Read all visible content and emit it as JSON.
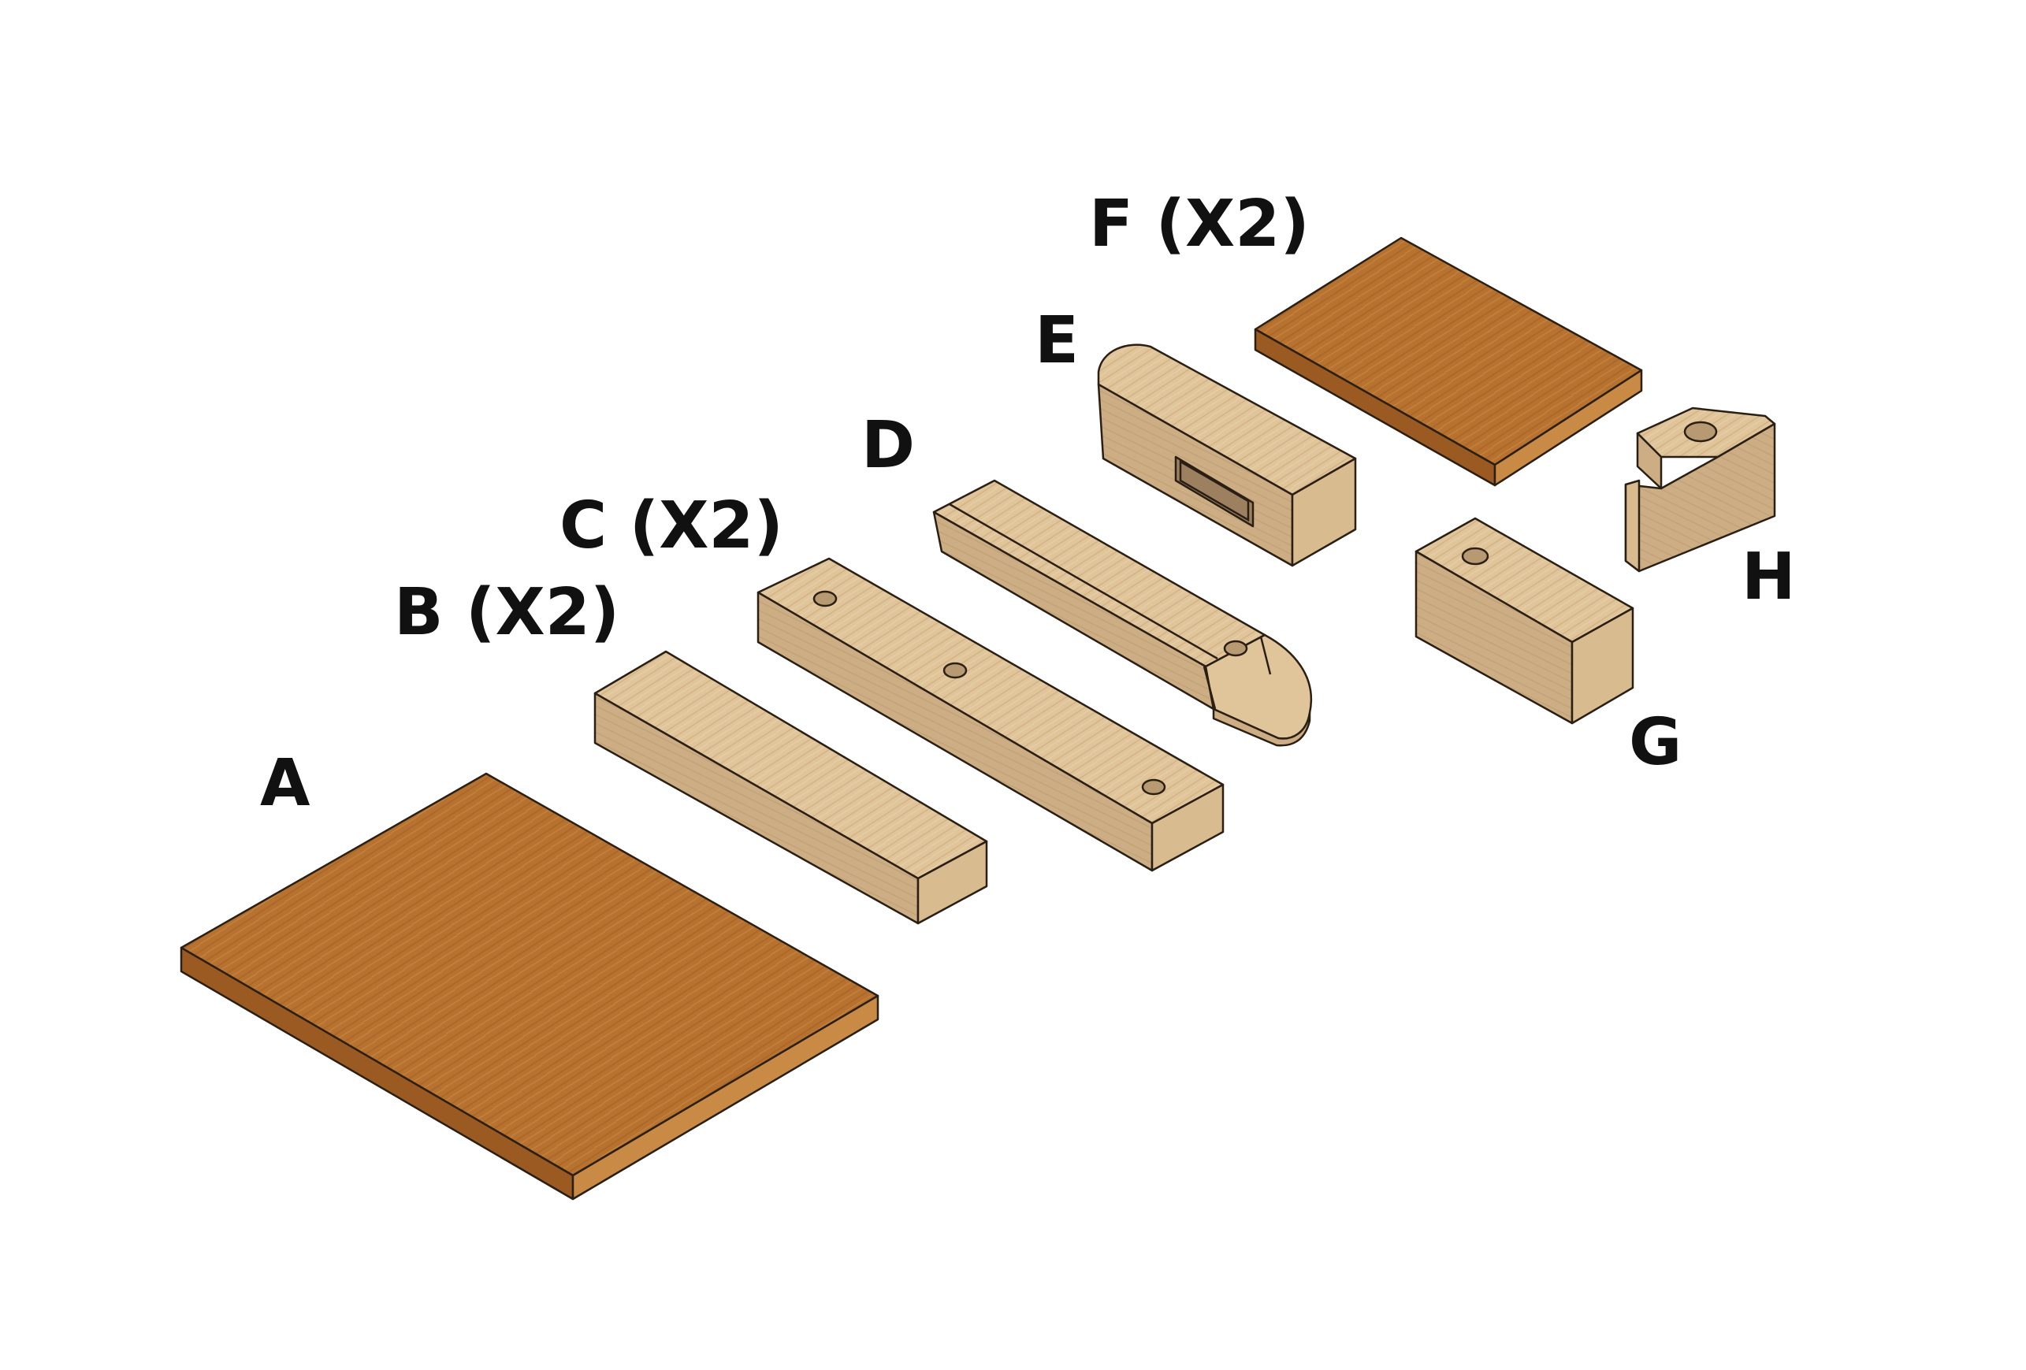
{
  "labels": {
    "a": "A",
    "b": "B (X2)",
    "c": "C (X2)",
    "d": "D",
    "e": "E",
    "f": "F (X2)",
    "g": "G",
    "h": "H"
  },
  "colors": {
    "dark_top": "#b7722f",
    "dark_front": "#9a5a22",
    "dark_side": "#c98a45",
    "light_top": "#e0c49a",
    "light_front": "#cdae84",
    "light_end": "#d8bb8e",
    "hole": "#b89a72",
    "outline": "#2a1f14"
  }
}
